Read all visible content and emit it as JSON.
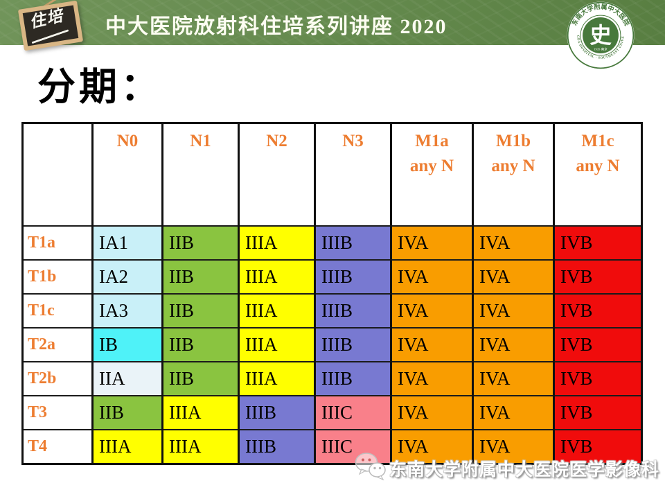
{
  "banner": {
    "badge_text": "住培",
    "title": "中大医院放射科住培系列讲座 2020",
    "bg_color": "#668b4f"
  },
  "logo": {
    "icon": "hospital-seal-icon",
    "ring_text_top": "东南大学附属中大医院",
    "ring_text_bottom": "ZHONGDA HOSPITAL · SOUTHEAST UNIVERSITY",
    "center_glyph": "史",
    "year_text": "1935·南京",
    "color": "#47793c"
  },
  "page_title": "分期：",
  "table": {
    "header_text_color": "#ed7d31",
    "row_label_color": "#ed7d31",
    "columns": [
      {
        "label": "N0",
        "sub": ""
      },
      {
        "label": "N1",
        "sub": ""
      },
      {
        "label": "N2",
        "sub": ""
      },
      {
        "label": "N3",
        "sub": ""
      },
      {
        "label": "M1a",
        "sub": "any N"
      },
      {
        "label": "M1b",
        "sub": "any N"
      },
      {
        "label": "M1c",
        "sub": "any N"
      }
    ],
    "stage_colors": {
      "IA1": "#c9f0f8",
      "IA2": "#c9f0f8",
      "IA3": "#c9f0f8",
      "IB": "#4ff2f8",
      "IIA": "#eaf3f8",
      "IIB": "#8ac440",
      "IIIA": "#ffff00",
      "IIIB": "#7879d1",
      "IIIC": "#f9808a",
      "IVA": "#f99d00",
      "IVB": "#f00c0c"
    },
    "rows": [
      {
        "label": "T1a",
        "cells": [
          "IA1",
          "IIB",
          "IIIA",
          "IIIB",
          "IVA",
          "IVA",
          "IVB"
        ]
      },
      {
        "label": "T1b",
        "cells": [
          "IA2",
          "IIB",
          "IIIA",
          "IIIB",
          "IVA",
          "IVA",
          "IVB"
        ]
      },
      {
        "label": "T1c",
        "cells": [
          "IA3",
          "IIB",
          "IIIA",
          "IIIB",
          "IVA",
          "IVA",
          "IVB"
        ]
      },
      {
        "label": "T2a",
        "cells": [
          "IB",
          "IIB",
          "IIIA",
          "IIIB",
          "IVA",
          "IVA",
          "IVB"
        ]
      },
      {
        "label": "T2b",
        "cells": [
          "IIA",
          "IIB",
          "IIIA",
          "IIIB",
          "IVA",
          "IVA",
          "IVB"
        ]
      },
      {
        "label": "T3",
        "cells": [
          "IIB",
          "IIIA",
          "IIIB",
          "IIIC",
          "IVA",
          "IVA",
          "IVB"
        ]
      },
      {
        "label": "T4",
        "cells": [
          "IIIA",
          "IIIA",
          "IIIB",
          "IIIC",
          "IVA",
          "IVA",
          "IVB"
        ]
      }
    ]
  },
  "footer": {
    "icon": "wechat-icon",
    "text": "东南大学附属中大医院医学影像科"
  }
}
